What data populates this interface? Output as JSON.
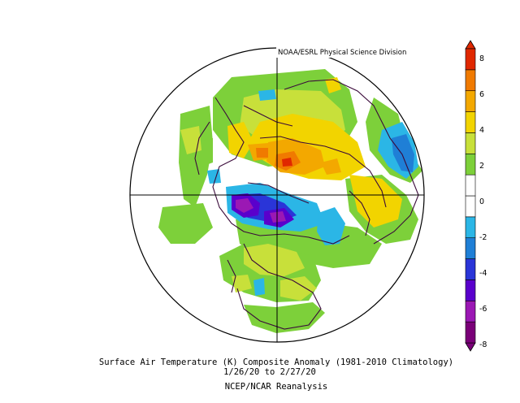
{
  "map": {
    "credit": "NOAA/ESRL Physical Science Division",
    "title": "Surface Air Temperature (K) Composite Anomaly (1981-2010 Climatology)",
    "dates": "1/26/20  to 2/27/20",
    "source": "NCEP/NCAR Reanalysis",
    "projection": "north-polar-stereographic"
  },
  "colorbar": {
    "ticks": [
      "8",
      "6",
      "4",
      "2",
      "0",
      "-2",
      "-4",
      "-6",
      "-8"
    ],
    "colors": [
      "#7a0078",
      "#9b18b4",
      "#5a00cc",
      "#2a35d8",
      "#1f7fd6",
      "#2bb6e6",
      "#ffffff",
      "#ffffff",
      "#7dd03a",
      "#c8e03a",
      "#f2d400",
      "#f3a800",
      "#f07a00",
      "#e02800"
    ]
  }
}
